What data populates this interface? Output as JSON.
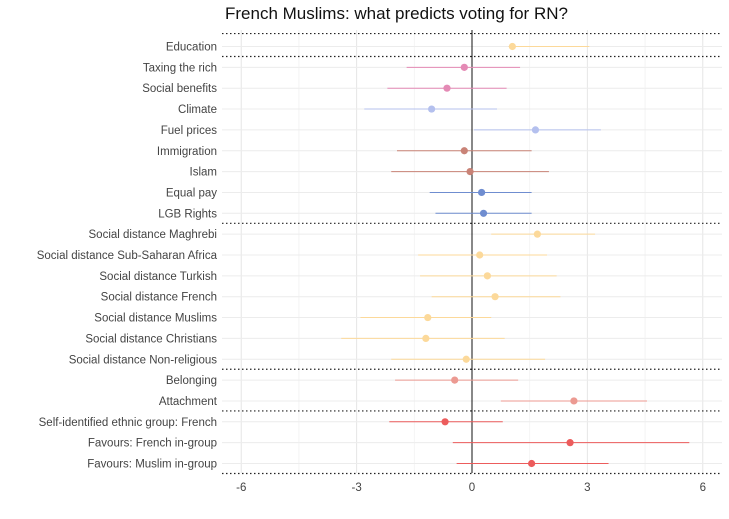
{
  "chart_data": {
    "type": "coefficient-plot",
    "title": "French Muslims: what predicts voting for RN?",
    "xlabel": "",
    "ylabel": "",
    "xlim": [
      -6.5,
      6.5
    ],
    "x_ticks": [
      -6,
      -3,
      0,
      3,
      6
    ],
    "x_tick_labels": [
      "-6",
      "-3",
      "0",
      "3",
      "6"
    ],
    "grid": true,
    "legend": "none",
    "vline_at": 0,
    "group_separators_after": [
      "Education",
      "LGB Rights",
      "Social distance Non-religious",
      "Attachment",
      "Favours: Muslim in-group"
    ],
    "group_separator_before_first": true,
    "rows": [
      {
        "label": "Education",
        "estimate": 1.05,
        "low": 0.95,
        "high": 3.05,
        "color": "#fcd99a"
      },
      {
        "label": "Taxing the rich",
        "estimate": -0.2,
        "low": -1.7,
        "high": 1.25,
        "color": "#e48ab5"
      },
      {
        "label": "Social benefits",
        "estimate": -0.65,
        "low": -2.2,
        "high": 0.9,
        "color": "#e48ab5"
      },
      {
        "label": "Climate",
        "estimate": -1.05,
        "low": -2.8,
        "high": 0.65,
        "color": "#b4c0ee"
      },
      {
        "label": "Fuel prices",
        "estimate": 1.65,
        "low": 0.05,
        "high": 3.35,
        "color": "#b4c0ee"
      },
      {
        "label": "Immigration",
        "estimate": -0.2,
        "low": -1.95,
        "high": 1.55,
        "color": "#c98377"
      },
      {
        "label": "Islam",
        "estimate": -0.05,
        "low": -2.1,
        "high": 2.0,
        "color": "#c98377"
      },
      {
        "label": "Equal pay",
        "estimate": 0.25,
        "low": -1.1,
        "high": 1.55,
        "color": "#6f8dd0"
      },
      {
        "label": "LGB Rights",
        "estimate": 0.3,
        "low": -0.95,
        "high": 1.55,
        "color": "#6f8dd0"
      },
      {
        "label": "Social distance Maghrebi",
        "estimate": 1.7,
        "low": 0.5,
        "high": 3.2,
        "color": "#fcd99a"
      },
      {
        "label": "Social distance Sub-Saharan Africa",
        "estimate": 0.2,
        "low": -1.4,
        "high": 1.95,
        "color": "#fcd99a"
      },
      {
        "label": "Social distance Turkish",
        "estimate": 0.4,
        "low": -1.35,
        "high": 2.2,
        "color": "#fcd99a"
      },
      {
        "label": "Social distance French",
        "estimate": 0.6,
        "low": -1.05,
        "high": 2.3,
        "color": "#fcd99a"
      },
      {
        "label": "Social distance Muslims",
        "estimate": -1.15,
        "low": -2.9,
        "high": 0.5,
        "color": "#fcd99a"
      },
      {
        "label": "Social distance Christians",
        "estimate": -1.2,
        "low": -3.4,
        "high": 0.85,
        "color": "#fcd99a"
      },
      {
        "label": "Social distance Non-religious",
        "estimate": -0.15,
        "low": -2.1,
        "high": 1.9,
        "color": "#fcd99a"
      },
      {
        "label": "Belonging",
        "estimate": -0.45,
        "low": -2.0,
        "high": 1.2,
        "color": "#ec9a92"
      },
      {
        "label": "Attachment",
        "estimate": 2.65,
        "low": 0.75,
        "high": 4.55,
        "color": "#ec9a92"
      },
      {
        "label": "Self-identified ethnic group: French",
        "estimate": -0.7,
        "low": -2.15,
        "high": 0.8,
        "color": "#ec5c5c"
      },
      {
        "label": "Favours: French in-group",
        "estimate": 2.55,
        "low": -0.5,
        "high": 5.65,
        "color": "#ec5c5c"
      },
      {
        "label": "Favours: Muslim in-group",
        "estimate": 1.55,
        "low": -0.4,
        "high": 3.55,
        "color": "#ec5c5c"
      }
    ]
  }
}
